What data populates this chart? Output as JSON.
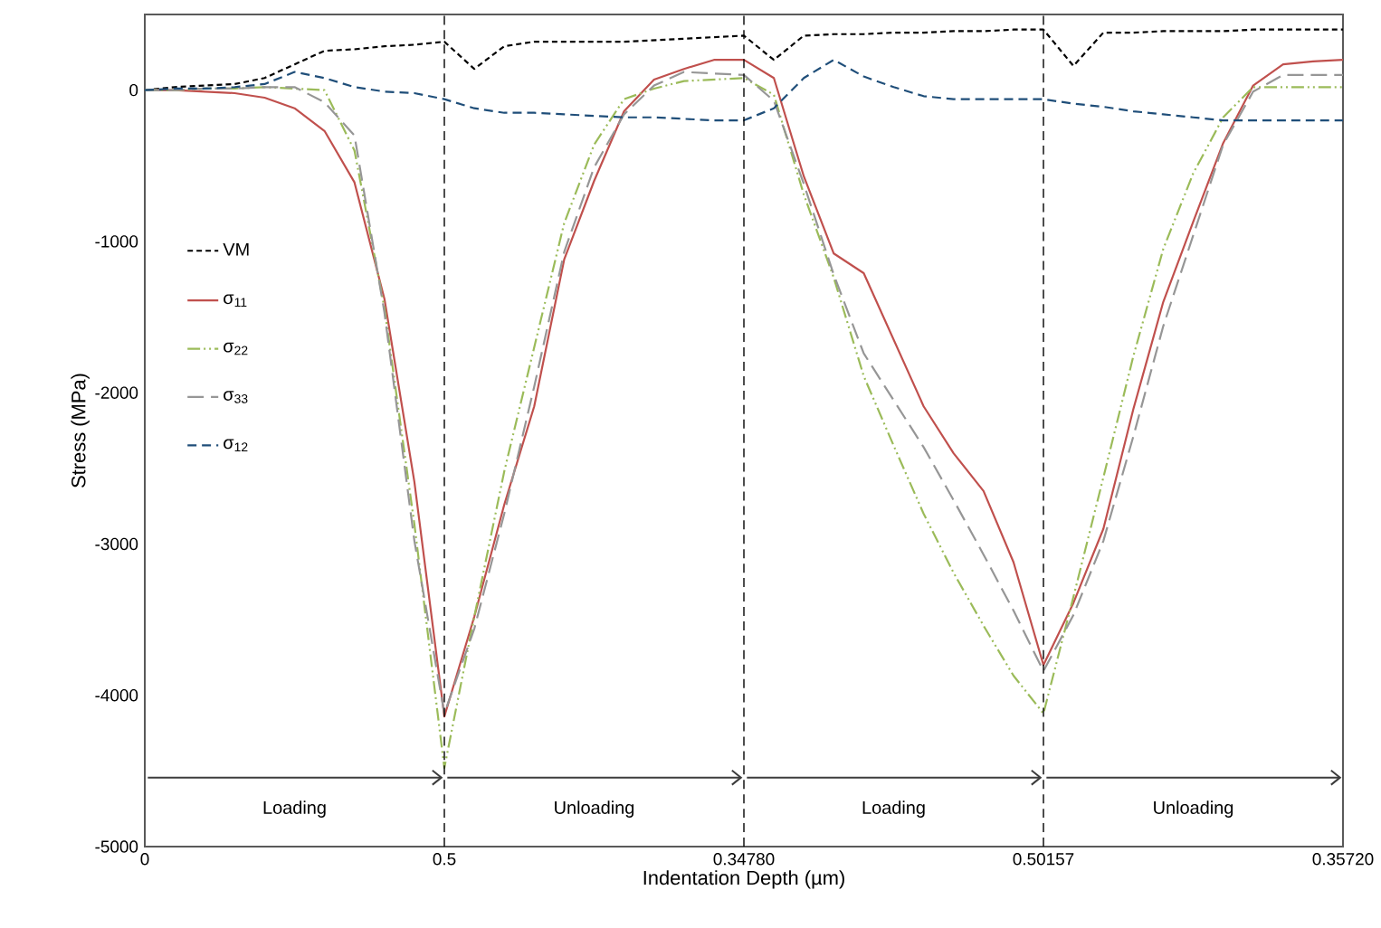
{
  "chart_data": {
    "type": "line",
    "xlabel": "Indentation Depth (µm)",
    "ylabel": "Stress (MPa)",
    "categories": [
      "0",
      null,
      null,
      null,
      null,
      null,
      null,
      null,
      null,
      null,
      "0.5",
      null,
      null,
      null,
      null,
      null,
      null,
      null,
      null,
      null,
      "0.34780",
      null,
      null,
      null,
      null,
      null,
      null,
      null,
      null,
      null,
      "0.50157",
      null,
      null,
      null,
      null,
      null,
      null,
      null,
      null,
      null,
      "0.35720"
    ],
    "ylim": [
      -5000,
      500
    ],
    "yticks": [
      -5000,
      -4000,
      -3000,
      -2000,
      -1000,
      0
    ],
    "legend": "left",
    "grid": false,
    "ref_lines": [
      {
        "axis": "x",
        "value": "0.5",
        "color": "#000000",
        "line_style": "dashed"
      },
      {
        "axis": "x",
        "value": "0.34780",
        "color": "#000000",
        "line_style": "dashed"
      },
      {
        "axis": "x",
        "value": "0.50157",
        "color": "#000000",
        "line_style": "dashed"
      }
    ],
    "annotations": [
      "Loading",
      "Unloading",
      "Loading",
      "Unloading"
    ],
    "series": [
      {
        "name": "VM",
        "color": "#000000",
        "line_style": "densely dashed",
        "values": [
          0,
          20,
          30,
          40,
          80,
          170,
          260,
          270,
          290,
          300,
          320,
          140,
          290,
          320,
          320,
          320,
          320,
          330,
          340,
          350,
          360,
          200,
          360,
          370,
          370,
          380,
          380,
          390,
          390,
          400,
          400,
          160,
          380,
          380,
          390,
          390,
          390,
          400,
          400,
          400,
          400
        ]
      },
      {
        "name": "σ$_{11}$",
        "color": "#c0504d",
        "line_style": "solid",
        "values": [
          0,
          0,
          -10,
          -20,
          -50,
          -120,
          -270,
          -610,
          -1380,
          -2590,
          -4140,
          -3480,
          -2740,
          -2090,
          -1120,
          -600,
          -140,
          70,
          140,
          200,
          200,
          80,
          -570,
          -1080,
          -1210,
          -1650,
          -2090,
          -2400,
          -2650,
          -3120,
          -3800,
          -3390,
          -2900,
          -2110,
          -1400,
          -870,
          -350,
          30,
          170,
          190,
          200
        ]
      },
      {
        "name": "σ$_{22}$",
        "color": "#9bbb59",
        "line_style": "dashdotdotted",
        "values": [
          0,
          0,
          10,
          10,
          20,
          10,
          0,
          -400,
          -1440,
          -2870,
          -4480,
          -3480,
          -2520,
          -1700,
          -880,
          -360,
          -60,
          10,
          60,
          70,
          80,
          -30,
          -690,
          -1240,
          -1890,
          -2350,
          -2800,
          -3190,
          -3540,
          -3870,
          -4120,
          -3350,
          -2560,
          -1760,
          -1050,
          -550,
          -180,
          20,
          20,
          20,
          20
        ]
      },
      {
        "name": "σ$_{33}$",
        "color": "#969696",
        "line_style": "loosely dashed",
        "values": [
          0,
          0,
          10,
          10,
          20,
          20,
          -80,
          -300,
          -1470,
          -2980,
          -4120,
          -3560,
          -2800,
          -1960,
          -1070,
          -510,
          -160,
          30,
          120,
          110,
          100,
          -70,
          -620,
          -1220,
          -1740,
          -2050,
          -2360,
          -2710,
          -3070,
          -3440,
          -3840,
          -3470,
          -2980,
          -2290,
          -1560,
          -960,
          -360,
          -10,
          100,
          100,
          100
        ]
      },
      {
        "name": "σ$_{12}$",
        "color": "#1f4e79",
        "line_style": "dashed",
        "values": [
          0,
          10,
          10,
          20,
          40,
          120,
          80,
          20,
          -10,
          -20,
          -60,
          -120,
          -150,
          -150,
          -160,
          -170,
          -180,
          -180,
          -190,
          -200,
          -200,
          -120,
          80,
          200,
          90,
          20,
          -40,
          -60,
          -60,
          -60,
          -60,
          -90,
          -110,
          -140,
          -160,
          -180,
          -200,
          -200,
          -200,
          -200,
          -200
        ]
      }
    ]
  }
}
